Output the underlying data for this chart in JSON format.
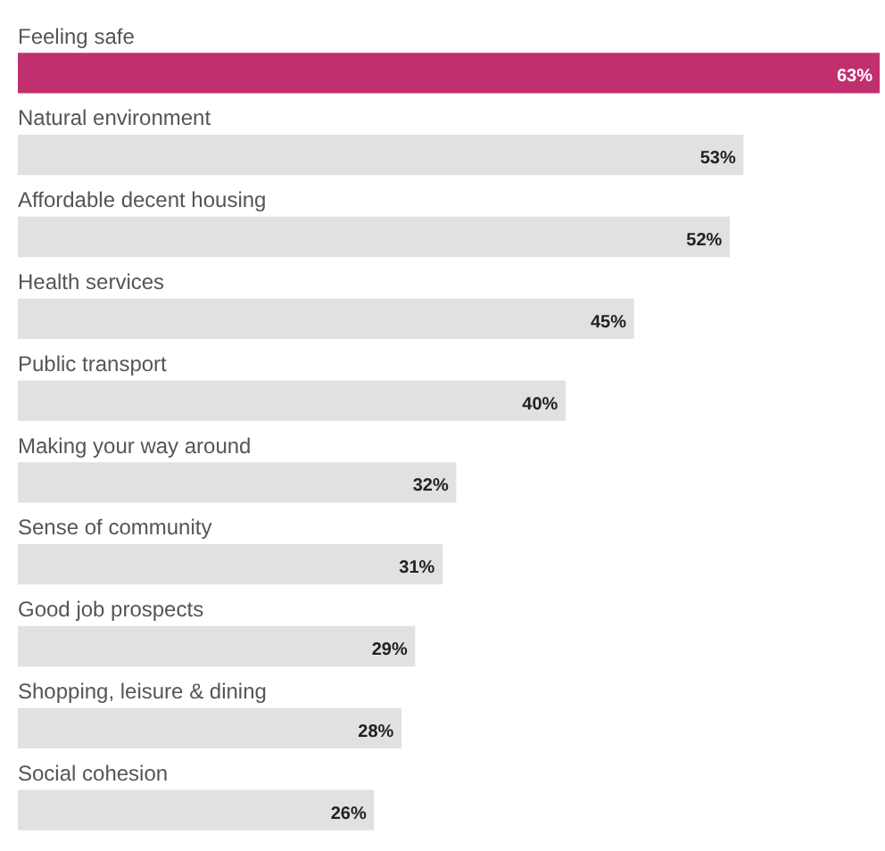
{
  "chart_data": {
    "type": "bar",
    "orientation": "horizontal",
    "categories": [
      "Feeling safe",
      "Natural environment",
      "Affordable decent housing",
      "Health services",
      "Public transport",
      "Making your way around",
      "Sense of community",
      "Good job prospects",
      "Shopping, leisure & dining",
      "Social cohesion"
    ],
    "values": [
      63,
      53,
      52,
      45,
      40,
      32,
      31,
      29,
      28,
      26
    ],
    "value_labels": [
      "63%",
      "53%",
      "52%",
      "45%",
      "40%",
      "32%",
      "31%",
      "29%",
      "28%",
      "26%"
    ],
    "colors": [
      "#c0306e",
      "#e1e1e1",
      "#e1e1e1",
      "#e1e1e1",
      "#e1e1e1",
      "#e1e1e1",
      "#e1e1e1",
      "#e1e1e1",
      "#e1e1e1",
      "#e1e1e1"
    ],
    "legend": false,
    "tick_labels": false
  }
}
